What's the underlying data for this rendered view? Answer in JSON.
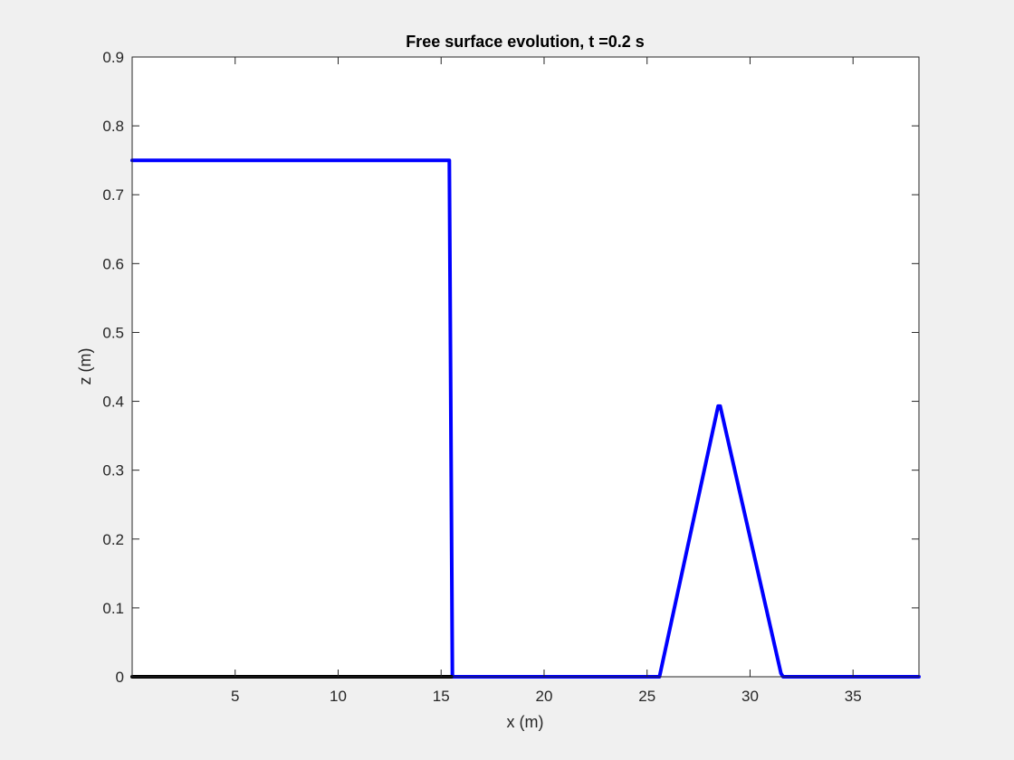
{
  "chart_data": {
    "type": "line",
    "title": "Free surface evolution, t =0.2 s",
    "xlabel": "x (m)",
    "ylabel": "z (m)",
    "xlim": [
      0,
      38.2
    ],
    "ylim": [
      0,
      0.9
    ],
    "xticks": [
      5,
      10,
      15,
      20,
      25,
      30,
      35
    ],
    "yticks": [
      0,
      0.1,
      0.2,
      0.3,
      0.4,
      0.5,
      0.6,
      0.7,
      0.8,
      0.9
    ],
    "grid": false,
    "series": [
      {
        "color": "#0000ff",
        "x": [
          0,
          15.4,
          15.55,
          25.5,
          25.6,
          28.45,
          28.55,
          31.5,
          31.6,
          38.2
        ],
        "y": [
          0.75,
          0.75,
          0.0,
          0.0,
          0.0,
          0.393,
          0.393,
          0.005,
          0.0,
          0.0
        ]
      },
      {
        "color": "#000000",
        "x": [
          0,
          15.5
        ],
        "y": [
          0,
          0
        ]
      }
    ]
  },
  "colors": {
    "figure_background": "#f0f0f0",
    "axes_background": "#ffffff"
  }
}
